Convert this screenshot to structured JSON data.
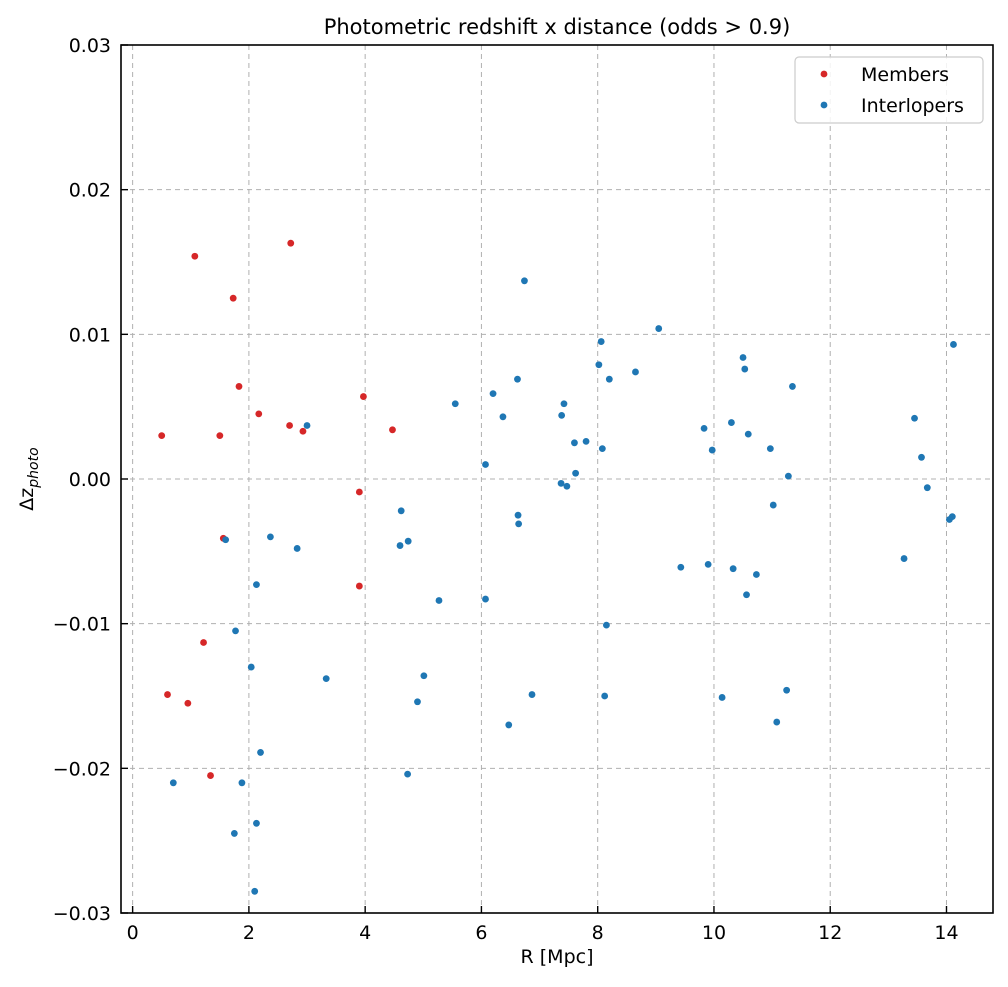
{
  "chart_data": {
    "type": "scatter",
    "title": "Photometric redshift x distance (odds > 0.9)",
    "xlabel": "R [Mpc]",
    "ylabel_base": "Δz",
    "ylabel_sub": "photo",
    "xlim": [
      -0.2,
      14.8
    ],
    "ylim": [
      -0.03,
      0.03
    ],
    "xticks": [
      0,
      2,
      4,
      6,
      8,
      10,
      12,
      14
    ],
    "xtick_labels": [
      "0",
      "2",
      "4",
      "6",
      "8",
      "10",
      "12",
      "14"
    ],
    "yticks": [
      -0.03,
      -0.02,
      -0.01,
      0.0,
      0.01,
      0.02,
      0.03
    ],
    "ytick_labels": [
      "−0.03",
      "−0.02",
      "−0.01",
      "0.00",
      "0.01",
      "0.02",
      "0.03"
    ],
    "grid": true,
    "legend_position": "top-right",
    "series": [
      {
        "name": "Members",
        "color": "#d62728",
        "points": [
          [
            0.5,
            0.003
          ],
          [
            0.6,
            -0.0149
          ],
          [
            0.95,
            -0.0155
          ],
          [
            1.07,
            0.0154
          ],
          [
            1.22,
            -0.0113
          ],
          [
            1.34,
            -0.0205
          ],
          [
            1.5,
            0.003
          ],
          [
            1.56,
            -0.0041
          ],
          [
            1.73,
            0.0125
          ],
          [
            1.83,
            0.0064
          ],
          [
            2.17,
            0.0045
          ],
          [
            2.7,
            0.0037
          ],
          [
            2.72,
            0.0163
          ],
          [
            2.93,
            0.0033
          ],
          [
            3.9,
            -0.0009
          ],
          [
            3.9,
            -0.0074
          ],
          [
            3.97,
            0.0057
          ],
          [
            4.47,
            0.0034
          ]
        ]
      },
      {
        "name": "Interlopers",
        "color": "#1f77b4",
        "points": [
          [
            0.7,
            -0.021
          ],
          [
            1.6,
            -0.0042
          ],
          [
            1.75,
            -0.0245
          ],
          [
            1.77,
            -0.0105
          ],
          [
            1.88,
            -0.021
          ],
          [
            2.04,
            -0.013
          ],
          [
            2.1,
            -0.0285
          ],
          [
            2.13,
            -0.0073
          ],
          [
            2.13,
            -0.0238
          ],
          [
            2.2,
            -0.0189
          ],
          [
            2.37,
            -0.004
          ],
          [
            2.83,
            -0.0048
          ],
          [
            3.0,
            0.0037
          ],
          [
            3.33,
            -0.0138
          ],
          [
            4.6,
            -0.0046
          ],
          [
            4.62,
            -0.0022
          ],
          [
            4.73,
            -0.0204
          ],
          [
            4.74,
            -0.0043
          ],
          [
            4.9,
            -0.0154
          ],
          [
            5.01,
            -0.0136
          ],
          [
            5.27,
            -0.0084
          ],
          [
            5.55,
            0.0052
          ],
          [
            6.07,
            0.001
          ],
          [
            6.07,
            -0.0083
          ],
          [
            6.2,
            0.0059
          ],
          [
            6.37,
            0.0043
          ],
          [
            6.47,
            -0.017
          ],
          [
            6.62,
            0.0069
          ],
          [
            6.63,
            -0.0025
          ],
          [
            6.64,
            -0.0031
          ],
          [
            6.74,
            0.0137
          ],
          [
            6.87,
            -0.0149
          ],
          [
            7.37,
            -0.0003
          ],
          [
            7.38,
            0.0044
          ],
          [
            7.42,
            0.0052
          ],
          [
            7.47,
            -0.0005
          ],
          [
            7.6,
            0.0025
          ],
          [
            7.62,
            0.0004
          ],
          [
            7.8,
            0.0026
          ],
          [
            8.02,
            0.0079
          ],
          [
            8.06,
            0.0095
          ],
          [
            8.08,
            0.0021
          ],
          [
            8.12,
            -0.015
          ],
          [
            8.15,
            -0.0101
          ],
          [
            8.2,
            0.0069
          ],
          [
            8.65,
            0.0074
          ],
          [
            9.05,
            0.0104
          ],
          [
            9.43,
            -0.0061
          ],
          [
            9.83,
            0.0035
          ],
          [
            9.9,
            -0.0059
          ],
          [
            9.97,
            0.002
          ],
          [
            10.14,
            -0.0151
          ],
          [
            10.3,
            0.0039
          ],
          [
            10.33,
            -0.0062
          ],
          [
            10.5,
            0.0084
          ],
          [
            10.53,
            0.0076
          ],
          [
            10.56,
            -0.008
          ],
          [
            10.59,
            0.0031
          ],
          [
            10.73,
            -0.0066
          ],
          [
            10.97,
            0.0021
          ],
          [
            11.02,
            -0.0018
          ],
          [
            11.08,
            -0.0168
          ],
          [
            11.25,
            -0.0146
          ],
          [
            11.28,
            0.0002
          ],
          [
            11.35,
            0.0064
          ],
          [
            13.27,
            -0.0055
          ],
          [
            13.45,
            0.0042
          ],
          [
            13.57,
            0.0015
          ],
          [
            13.67,
            -0.0006
          ],
          [
            14.05,
            -0.0028
          ],
          [
            14.1,
            -0.0026
          ],
          [
            14.12,
            0.0093
          ]
        ]
      }
    ]
  }
}
